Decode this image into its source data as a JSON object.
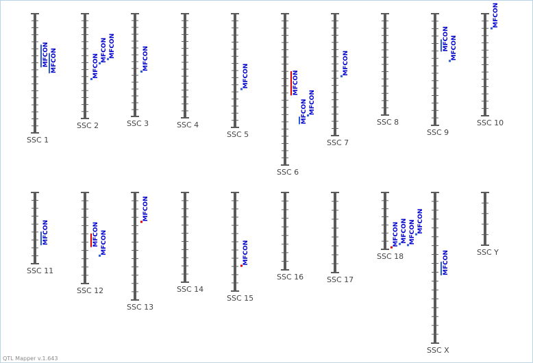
{
  "app": {
    "version_label": "QTL Mapper v.1.643"
  },
  "colors": {
    "chromosome": "#5a5a5a",
    "tick": "#5a5a5a",
    "label": "#444444",
    "qtl_text": "#0000cc",
    "qtl_blue": "#2a5bd7",
    "qtl_red": "#e00000",
    "frame": "#b9d3e6"
  },
  "chromosomes": [
    {
      "label": "SSC 1",
      "ticks": 17,
      "qtls": [
        {
          "text": "MFCON",
          "color": "blue",
          "start": 0.26,
          "end": 0.45
        },
        {
          "text": "MFCON",
          "color": "blue",
          "start": 0.33,
          "end": 0.5
        }
      ]
    },
    {
      "label": "SSC 2",
      "ticks": 15,
      "qtls": [
        {
          "text": "MFCON",
          "color": "blue",
          "start": 0.62,
          "end": 0.62
        },
        {
          "text": "MFCON",
          "color": "blue",
          "start": 0.47,
          "end": 0.47
        },
        {
          "text": "MFCON",
          "color": "blue",
          "start": 0.43,
          "end": 0.43
        }
      ]
    },
    {
      "label": "SSC 3",
      "ticks": 15,
      "qtls": [
        {
          "text": "MFCON",
          "color": "blue",
          "start": 0.56,
          "end": 0.56
        }
      ]
    },
    {
      "label": "SSC 4",
      "ticks": 15,
      "qtls": []
    },
    {
      "label": "SSC 5",
      "ticks": 16,
      "qtls": [
        {
          "text": "MFCON",
          "color": "blue",
          "start": 0.66,
          "end": 0.66
        }
      ]
    },
    {
      "label": "SSC 6",
      "ticks": 21,
      "qtls": [
        {
          "text": "MFCON",
          "color": "red",
          "start": 0.38,
          "end": 0.54
        },
        {
          "text": "MFCON",
          "color": "blue",
          "start": 0.68,
          "end": 0.73
        },
        {
          "text": "MFCON",
          "color": "blue",
          "start": 0.67,
          "end": 0.67
        }
      ]
    },
    {
      "label": "SSC 7",
      "ticks": 17,
      "qtls": [
        {
          "text": "MFCON",
          "color": "blue",
          "start": 0.51,
          "end": 0.51
        }
      ]
    },
    {
      "label": "SSC 8",
      "ticks": 14,
      "qtls": []
    },
    {
      "label": "SSC 9",
      "ticks": 15,
      "qtls": [
        {
          "text": "MFCON",
          "color": "blue",
          "start": 0.23,
          "end": 0.34
        },
        {
          "text": "MFCON",
          "color": "blue",
          "start": 0.42,
          "end": 0.42
        }
      ]
    },
    {
      "label": "SSC 10",
      "ticks": 14,
      "qtls": [
        {
          "text": "MFCON",
          "color": "blue",
          "start": 0.14,
          "end": 0.14
        }
      ]
    },
    {
      "label": "SSC 11",
      "ticks": 9,
      "qtls": [
        {
          "text": "MFCON",
          "color": "blue",
          "start": 0.55,
          "end": 0.74
        }
      ]
    },
    {
      "label": "SSC 12",
      "ticks": 11,
      "qtls": [
        {
          "text": "MFCON",
          "color": "red",
          "start": 0.45,
          "end": 0.6
        },
        {
          "text": "MFCON",
          "color": "blue",
          "start": 0.69,
          "end": 0.69
        }
      ]
    },
    {
      "label": "SSC 13",
      "ticks": 13,
      "qtls": [
        {
          "text": "MFCON",
          "color": "red",
          "start": 0.27,
          "end": 0.27
        }
      ]
    },
    {
      "label": "SSC 14",
      "ticks": 11,
      "qtls": []
    },
    {
      "label": "SSC 15",
      "ticks": 12,
      "qtls": [
        {
          "text": "MFCON",
          "color": "red",
          "start": 0.74,
          "end": 0.74
        }
      ]
    },
    {
      "label": "SSC 16",
      "ticks": 9,
      "qtls": []
    },
    {
      "label": "SSC 17",
      "ticks": 9,
      "qtls": []
    },
    {
      "label": "SSC 18",
      "ticks": 7,
      "qtls": [
        {
          "text": "MFCON",
          "color": "red",
          "start": 0.96,
          "end": 0.96
        },
        {
          "text": "MFCON",
          "color": "blue",
          "start": 0.9,
          "end": 0.9
        },
        {
          "text": "MFCON",
          "color": "blue",
          "start": 0.92,
          "end": 0.92
        },
        {
          "text": "MFCON",
          "color": "blue",
          "start": 0.73,
          "end": 0.73
        }
      ]
    },
    {
      "label": "SSC X",
      "ticks": 17,
      "qtls": [
        {
          "text": "MFCON",
          "color": "blue",
          "start": 0.46,
          "end": 0.55
        }
      ]
    },
    {
      "label": "SSC Y",
      "ticks": 5,
      "qtls": []
    }
  ]
}
